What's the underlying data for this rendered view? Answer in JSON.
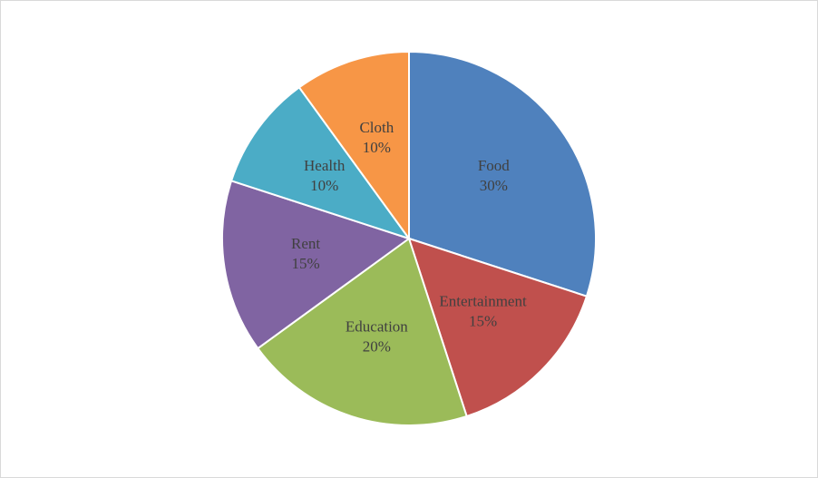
{
  "chart_data": {
    "type": "pie",
    "categories": [
      "Food",
      "Entertainment",
      "Education",
      "Rent",
      "Health",
      "Cloth"
    ],
    "values": [
      30,
      15,
      20,
      15,
      10,
      10
    ],
    "value_labels": [
      "30%",
      "15%",
      "20%",
      "15%",
      "10%",
      "10%"
    ],
    "colors": [
      "#4f81bd",
      "#c0504d",
      "#9bbb59",
      "#8064a2",
      "#4bacc6",
      "#f79646"
    ]
  }
}
